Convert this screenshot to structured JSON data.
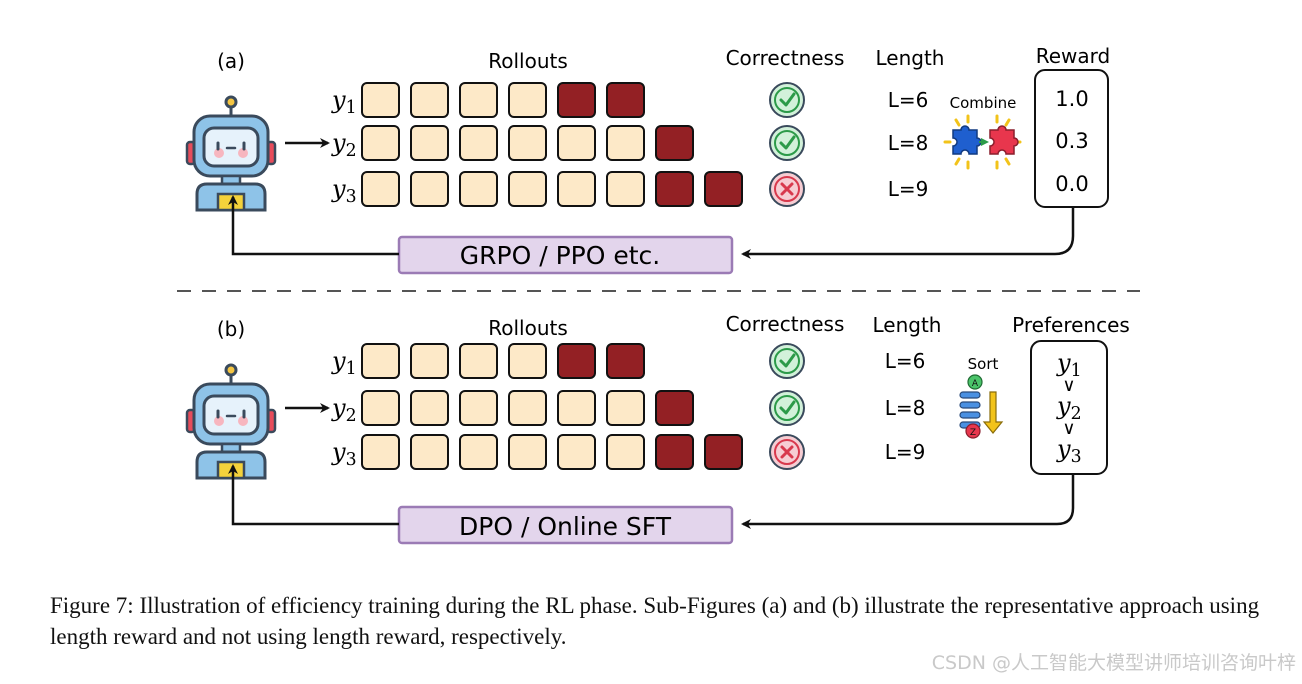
{
  "panel_a": {
    "tag": "(a)",
    "rollouts_title": "Rollouts",
    "correctness_title": "Correctness",
    "length_title": "Length",
    "reward_title": "Reward",
    "combine_label": "Combine",
    "method_label": "GRPO / PPO  etc.",
    "rows": [
      {
        "label": "y",
        "sub": "1",
        "light": 4,
        "dark": 2,
        "correct": true,
        "length": "L=6",
        "reward": "1.0"
      },
      {
        "label": "y",
        "sub": "2",
        "light": 6,
        "dark": 1,
        "correct": true,
        "length": "L=8",
        "reward": "0.3"
      },
      {
        "label": "y",
        "sub": "3",
        "light": 6,
        "dark": 2,
        "correct": false,
        "length": "L=9",
        "reward": "0.0"
      }
    ]
  },
  "panel_b": {
    "tag": "(b)",
    "rollouts_title": "Rollouts",
    "correctness_title": "Correctness",
    "length_title": "Length",
    "preferences_title": "Preferences",
    "sort_label": "Sort",
    "sort_badge_top": "A",
    "sort_badge_bottom": "Z",
    "method_label": "DPO / Online SFT",
    "rows": [
      {
        "label": "y",
        "sub": "1",
        "light": 4,
        "dark": 2,
        "correct": true,
        "length": "L=6"
      },
      {
        "label": "y",
        "sub": "2",
        "light": 6,
        "dark": 1,
        "correct": true,
        "length": "L=8"
      },
      {
        "label": "y",
        "sub": "3",
        "light": 6,
        "dark": 2,
        "correct": false,
        "length": "L=9"
      }
    ],
    "preference_order": [
      {
        "label": "y",
        "sub": "1"
      },
      {
        "label": "y",
        "sub": "2"
      },
      {
        "label": "y",
        "sub": "3"
      }
    ],
    "preference_symbol": "∨"
  },
  "caption": "Figure 7: Illustration of efficiency training during the RL phase. Sub-Figures (a) and (b) illustrate the representative approach using length reward and not using length reward, respectively.",
  "watermark": "CSDN @人工智能大模型讲师培训咨询叶梓",
  "colors": {
    "token_light": "#fde9c8",
    "token_dark": "#932024",
    "correct_fill": "#d2f1da",
    "correct_stroke": "#2c9a49",
    "wrong_fill": "#f6cdd3",
    "wrong_stroke": "#d8394d",
    "method_fill": "#e3d5ec",
    "method_stroke": "#9b7bb5",
    "robot_body": "#8ec3e8",
    "robot_dark": "#3a4a5c"
  },
  "icons": [
    "robot-icon",
    "check-icon",
    "cross-icon",
    "puzzle-icon",
    "sort-icon"
  ]
}
